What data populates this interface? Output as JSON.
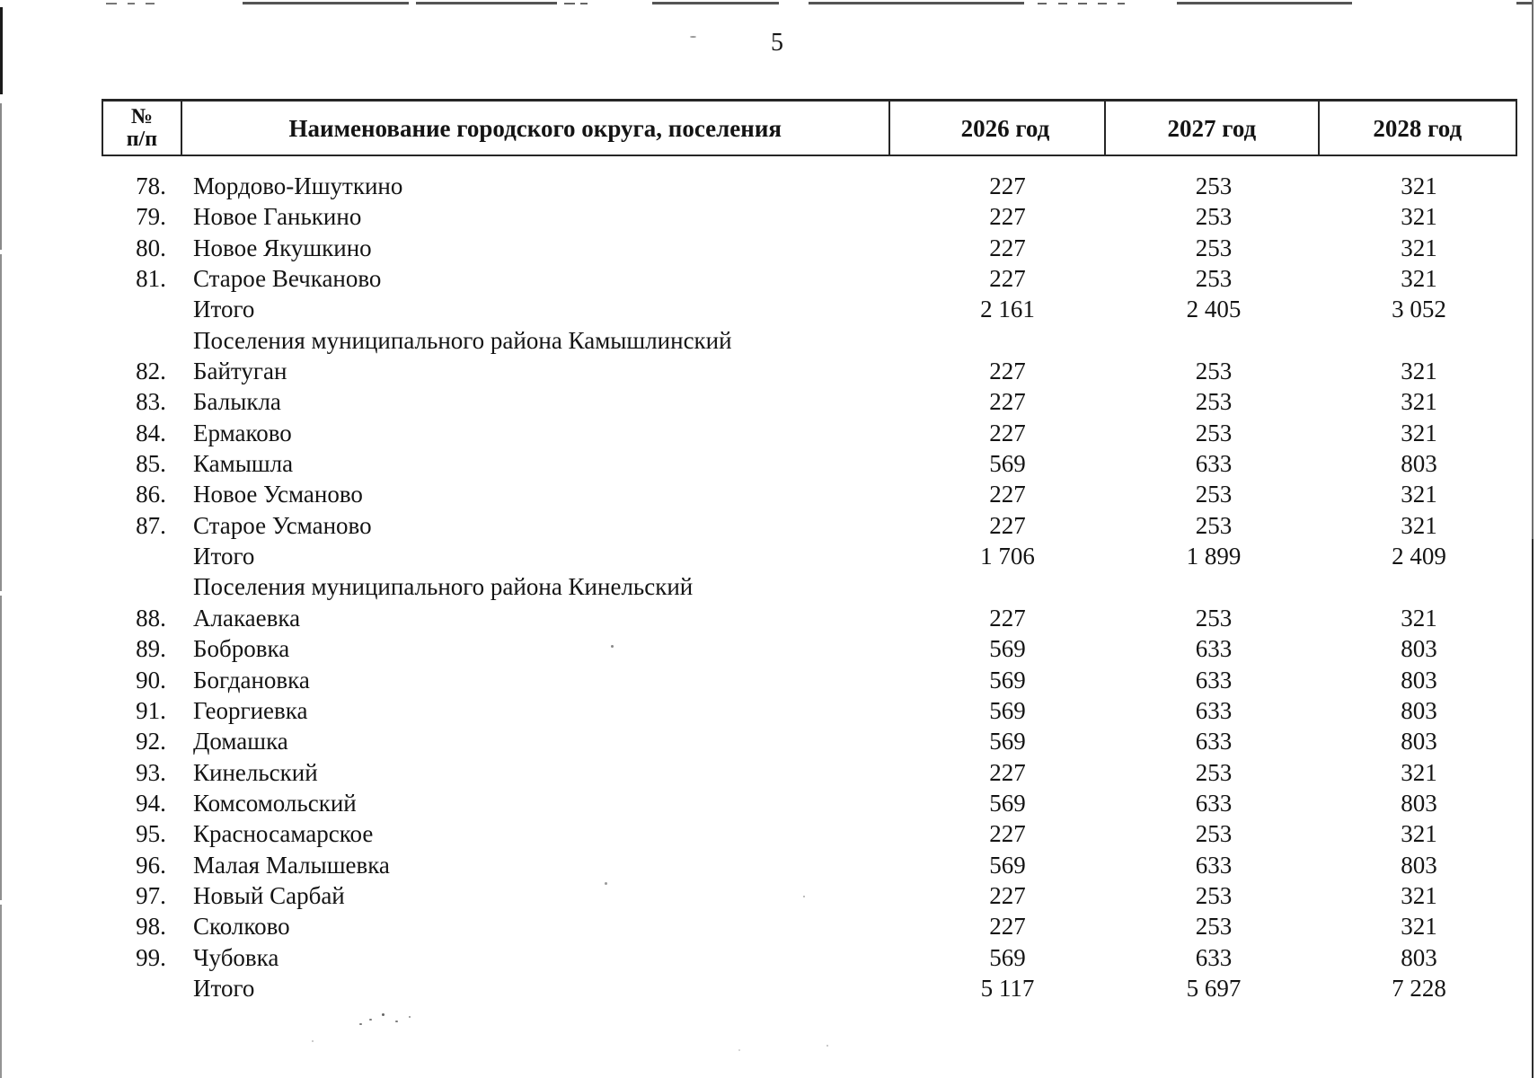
{
  "page": {
    "number": "5"
  },
  "colors": {
    "ink": "#141414",
    "table_border": "#262626",
    "artifact_gray": "#4a4a4a"
  },
  "table": {
    "header": {
      "col_no_line1": "№",
      "col_no_line2": "п/п",
      "col_name": "Наименование городского округа, поселения",
      "col_2026": "2026 год",
      "col_2027": "2027 год",
      "col_2028": "2028 год"
    },
    "rows": [
      {
        "type": "item",
        "num": "78.",
        "name": "Мордово-Ишуткино",
        "v2026": "227",
        "v2027": "253",
        "v2028": "321"
      },
      {
        "type": "item",
        "num": "79.",
        "name": "Новое Ганькино",
        "v2026": "227",
        "v2027": "253",
        "v2028": "321"
      },
      {
        "type": "item",
        "num": "80.",
        "name": "Новое Якушкино",
        "v2026": "227",
        "v2027": "253",
        "v2028": "321"
      },
      {
        "type": "item",
        "num": "81.",
        "name": "Старое Вечканово",
        "v2026": "227",
        "v2027": "253",
        "v2028": "321"
      },
      {
        "type": "total",
        "num": "",
        "name": "Итого",
        "v2026": "2 161",
        "v2027": "2 405",
        "v2028": "3 052"
      },
      {
        "type": "section",
        "num": "",
        "name": "Поселения муниципального района Камышлинский",
        "v2026": "",
        "v2027": "",
        "v2028": ""
      },
      {
        "type": "item",
        "num": "82.",
        "name": "Байтуган",
        "v2026": "227",
        "v2027": "253",
        "v2028": "321"
      },
      {
        "type": "item",
        "num": "83.",
        "name": "Балыкла",
        "v2026": "227",
        "v2027": "253",
        "v2028": "321"
      },
      {
        "type": "item",
        "num": "84.",
        "name": "Ермаково",
        "v2026": "227",
        "v2027": "253",
        "v2028": "321"
      },
      {
        "type": "item",
        "num": "85.",
        "name": "Камышла",
        "v2026": "569",
        "v2027": "633",
        "v2028": "803"
      },
      {
        "type": "item",
        "num": "86.",
        "name": "Новое Усманово",
        "v2026": "227",
        "v2027": "253",
        "v2028": "321"
      },
      {
        "type": "item",
        "num": "87.",
        "name": "Старое Усманово",
        "v2026": "227",
        "v2027": "253",
        "v2028": "321"
      },
      {
        "type": "total",
        "num": "",
        "name": "Итого",
        "v2026": "1 706",
        "v2027": "1 899",
        "v2028": "2 409"
      },
      {
        "type": "section",
        "num": "",
        "name": "Поселения муниципального района Кинельский",
        "v2026": "",
        "v2027": "",
        "v2028": ""
      },
      {
        "type": "item",
        "num": "88.",
        "name": "Алакаевка",
        "v2026": "227",
        "v2027": "253",
        "v2028": "321"
      },
      {
        "type": "item",
        "num": "89.",
        "name": "Бобровка",
        "v2026": "569",
        "v2027": "633",
        "v2028": "803"
      },
      {
        "type": "item",
        "num": "90.",
        "name": "Богдановка",
        "v2026": "569",
        "v2027": "633",
        "v2028": "803"
      },
      {
        "type": "item",
        "num": "91.",
        "name": "Георгиевка",
        "v2026": "569",
        "v2027": "633",
        "v2028": "803"
      },
      {
        "type": "item",
        "num": "92.",
        "name": "Домашка",
        "v2026": "569",
        "v2027": "633",
        "v2028": "803"
      },
      {
        "type": "item",
        "num": "93.",
        "name": "Кинельский",
        "v2026": "227",
        "v2027": "253",
        "v2028": "321"
      },
      {
        "type": "item",
        "num": "94.",
        "name": "Комсомольский",
        "v2026": "569",
        "v2027": "633",
        "v2028": "803"
      },
      {
        "type": "item",
        "num": "95.",
        "name": "Красносамарское",
        "v2026": "227",
        "v2027": "253",
        "v2028": "321"
      },
      {
        "type": "item",
        "num": "96.",
        "name": "Малая Малышевка",
        "v2026": "569",
        "v2027": "633",
        "v2028": "803"
      },
      {
        "type": "item",
        "num": "97.",
        "name": "Новый Сарбай",
        "v2026": "227",
        "v2027": "253",
        "v2028": "321"
      },
      {
        "type": "item",
        "num": "98.",
        "name": "Сколково",
        "v2026": "227",
        "v2027": "253",
        "v2028": "321"
      },
      {
        "type": "item",
        "num": "99.",
        "name": "Чубовка",
        "v2026": "569",
        "v2027": "633",
        "v2028": "803"
      },
      {
        "type": "total",
        "num": "",
        "name": "Итого",
        "v2026": "5 117",
        "v2027": "5 697",
        "v2028": "7 228"
      }
    ]
  }
}
